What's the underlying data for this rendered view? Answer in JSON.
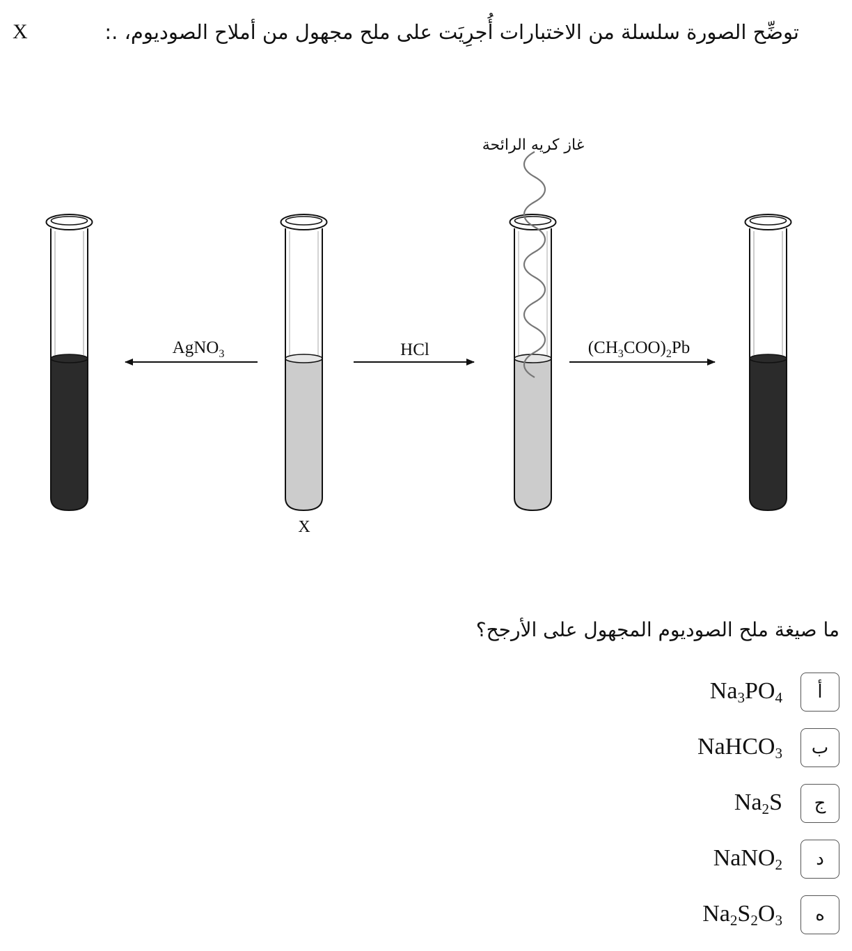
{
  "intro": {
    "text": "توضِّح الصورة سلسلة من الاختبارات أُجرِيَت على ملح مجهول من أملاح الصوديوم، .:",
    "x_symbol": "X"
  },
  "diagram": {
    "gas_label": "غاز كريه الرائحة",
    "tube_label": "X",
    "reagents": {
      "left": {
        "base": "AgNO",
        "sub": "3"
      },
      "middle": {
        "text": "HCl"
      },
      "right": {
        "part1": "(CH",
        "sub1": "3",
        "part2": "COO)",
        "sub2": "2",
        "part3": "Pb"
      }
    },
    "colors": {
      "dark_liquid": "#2b2b2b",
      "light_liquid": "#cccccc",
      "outline": "#111111"
    }
  },
  "question": {
    "text": "ما صيغة ملح الصوديوم المجهول على الأرجح؟",
    "options": [
      {
        "letter": "أ",
        "formula": [
          {
            "t": "Na"
          },
          {
            "s": "3"
          },
          {
            "t": "PO"
          },
          {
            "s": "4"
          }
        ]
      },
      {
        "letter": "ب",
        "formula": [
          {
            "t": "NaHCO"
          },
          {
            "s": "3"
          }
        ]
      },
      {
        "letter": "ج",
        "formula": [
          {
            "t": "Na"
          },
          {
            "s": "2"
          },
          {
            "t": "S"
          }
        ]
      },
      {
        "letter": "د",
        "formula": [
          {
            "t": "NaNO"
          },
          {
            "s": "2"
          }
        ]
      },
      {
        "letter": "ه",
        "formula": [
          {
            "t": "Na"
          },
          {
            "s": "2"
          },
          {
            "t": "S"
          },
          {
            "s": "2"
          },
          {
            "t": "O"
          },
          {
            "s": "3"
          }
        ]
      }
    ]
  }
}
